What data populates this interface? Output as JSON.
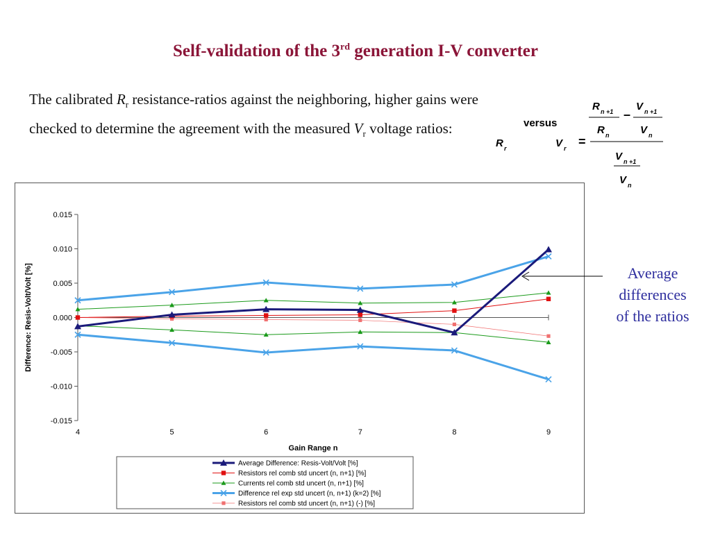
{
  "title": {
    "prefix": "Self-validation of the 3",
    "sup": "rd",
    "suffix": " generation I-V converter"
  },
  "intro": {
    "t1": "The calibrated ",
    "r_sym": "R",
    "r_sub": "r",
    "t2": " resistance-ratios against the neighboring, higher gains were checked to determine the agreement with the measured ",
    "v_sym": "V",
    "v_sub": "r",
    "t3": " voltage ratios:"
  },
  "formula": {
    "versus": "versus",
    "rr": "R",
    "rr_sub": "r",
    "vr": "V",
    "vr_sub": "r",
    "equals": "=",
    "minus": "–",
    "rn1": "R",
    "rn1_sub": "n +1",
    "rn": "R",
    "rn_sub": "n",
    "vn1": "V",
    "vn1_sub": "n +1",
    "vn": "V",
    "vn_sub": "n"
  },
  "annotation": {
    "line1": "Average",
    "line2": "differences",
    "line3": "of the ratios"
  },
  "chart_data": {
    "type": "line",
    "x": [
      4,
      5,
      6,
      7,
      8,
      9
    ],
    "x_tick_labels": [
      "4",
      "5",
      "6",
      "7",
      "8",
      "9"
    ],
    "xlabel": "Gain Range n",
    "ylabel": "Difference: Resis-Volt/Volt [%]",
    "ylim": [
      -0.015,
      0.015
    ],
    "y_ticks": [
      0.015,
      0.01,
      0.005,
      0.0,
      -0.005,
      -0.01,
      -0.015
    ],
    "y_tick_labels": [
      "0.015",
      "0.010",
      "0.005",
      "0.000",
      "-0.005",
      "-0.010",
      "-0.015"
    ],
    "grid": false,
    "legend_position": "bottom",
    "series": [
      {
        "name": "Average Difference: Resis-Volt/Volt [%]",
        "color": "#1a1a7a",
        "marker": "triangle",
        "values": [
          -0.0013,
          0.0004,
          0.0012,
          0.0011,
          -0.0022,
          0.0099
        ]
      },
      {
        "name": "Resistors rel comb std uncert (n, n+1) [%]",
        "color": "#e01010",
        "marker": "square",
        "values": [
          0.0,
          0.0002,
          0.0003,
          0.0004,
          0.001,
          0.0027
        ]
      },
      {
        "name": "Currents rel comb std uncert (n, n+1) [%]",
        "color": "#1a9a1a",
        "marker": "triangle",
        "values": [
          0.0012,
          0.0018,
          0.0025,
          0.0021,
          0.0022,
          0.0036
        ]
      },
      {
        "name": "Difference rel exp std uncert (n, n+1) (k=2) [%]",
        "color": "#4aa3e8",
        "marker": "x",
        "values": [
          0.0025,
          0.0037,
          0.0051,
          0.0042,
          0.0048,
          0.0089
        ]
      },
      {
        "name": "Resistors rel comb std uncert (n, n+1) (-) [%]",
        "color": "#f07070",
        "marker": "square",
        "values": [
          0.0,
          -0.0002,
          -0.0003,
          -0.0004,
          -0.001,
          -0.0027
        ]
      },
      {
        "name": "",
        "color": "#1a9a1a",
        "marker": "triangle",
        "values": [
          -0.0012,
          -0.0018,
          -0.0025,
          -0.0021,
          -0.0022,
          -0.0036
        ]
      },
      {
        "name": "",
        "color": "#4aa3e8",
        "marker": "x",
        "values": [
          -0.0025,
          -0.0037,
          -0.0051,
          -0.0042,
          -0.0048,
          -0.009
        ]
      }
    ]
  }
}
